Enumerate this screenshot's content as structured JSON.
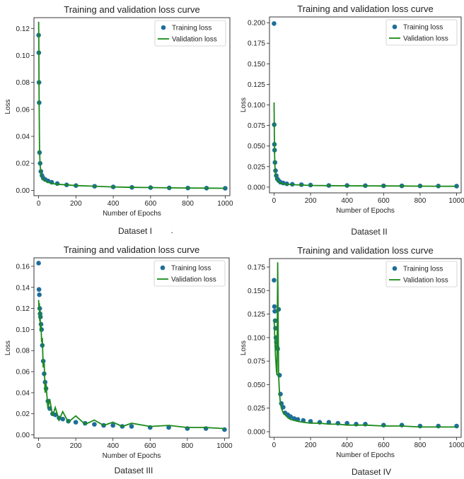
{
  "figure": {
    "captions": [
      "Dataset I",
      "Dataset II",
      "Dataset III",
      "Dataset IV"
    ],
    "stray_mark": "."
  },
  "chart_data": [
    {
      "type": "scatter",
      "title": "Training and validation loss curve",
      "xlabel": "Number of Epochs",
      "ylabel": "Loss",
      "xlim": [
        -25,
        1025
      ],
      "ylim": [
        -0.004,
        0.128
      ],
      "xticks": [
        0,
        200,
        400,
        600,
        800,
        1000
      ],
      "yticks": [
        0.0,
        0.02,
        0.04,
        0.06,
        0.08,
        0.1,
        0.12
      ],
      "ytick_labels": [
        "0.00",
        "0.02",
        "0.04",
        "0.06",
        "0.08",
        "0.10",
        "0.12"
      ],
      "legend": "top-right",
      "colors": {
        "training": "#1f6e99",
        "validation": "#1a8a1a"
      },
      "series": [
        {
          "name": "Training loss",
          "kind": "markers",
          "x": [
            0,
            1,
            2,
            3,
            5,
            8,
            12,
            18,
            25,
            35,
            50,
            70,
            100,
            150,
            200,
            300,
            400,
            500,
            600,
            700,
            800,
            900,
            1000
          ],
          "y": [
            0.115,
            0.102,
            0.08,
            0.065,
            0.028,
            0.02,
            0.014,
            0.011,
            0.009,
            0.008,
            0.007,
            0.006,
            0.005,
            0.004,
            0.0035,
            0.003,
            0.0025,
            0.0022,
            0.002,
            0.0018,
            0.0017,
            0.0016,
            0.0015
          ]
        },
        {
          "name": "Validation loss",
          "kind": "line",
          "x": [
            0,
            1,
            2,
            3,
            5,
            8,
            12,
            18,
            25,
            35,
            50,
            70,
            100,
            150,
            200,
            300,
            400,
            500,
            600,
            700,
            800,
            900,
            1000
          ],
          "y": [
            0.125,
            0.11,
            0.085,
            0.06,
            0.03,
            0.019,
            0.013,
            0.01,
            0.008,
            0.007,
            0.006,
            0.005,
            0.0045,
            0.004,
            0.0035,
            0.003,
            0.0025,
            0.0022,
            0.002,
            0.0018,
            0.0017,
            0.0016,
            0.0015
          ]
        }
      ]
    },
    {
      "type": "scatter",
      "title": "Training and validation loss curve",
      "xlabel": "Number of Epochs",
      "ylabel": "Loss",
      "xlim": [
        -25,
        1025
      ],
      "ylim": [
        -0.007,
        0.207
      ],
      "xticks": [
        0,
        200,
        400,
        600,
        800,
        1000
      ],
      "yticks": [
        0.0,
        0.025,
        0.05,
        0.075,
        0.1,
        0.125,
        0.15,
        0.175,
        0.2
      ],
      "ytick_labels": [
        "0.000",
        "0.025",
        "0.050",
        "0.075",
        "0.100",
        "0.125",
        "0.150",
        "0.175",
        "0.200"
      ],
      "legend": "top-right",
      "colors": {
        "training": "#1f6e99",
        "validation": "#1a8a1a"
      },
      "series": [
        {
          "name": "Training loss",
          "kind": "markers",
          "x": [
            0,
            1,
            2,
            3,
            5,
            8,
            12,
            18,
            25,
            35,
            50,
            70,
            100,
            150,
            200,
            300,
            400,
            500,
            600,
            700,
            800,
            900,
            1000
          ],
          "y": [
            0.199,
            0.076,
            0.052,
            0.045,
            0.03,
            0.02,
            0.014,
            0.01,
            0.008,
            0.006,
            0.005,
            0.004,
            0.0035,
            0.003,
            0.0025,
            0.002,
            0.002,
            0.0018,
            0.0016,
            0.0015,
            0.0014,
            0.0013,
            0.0012
          ]
        },
        {
          "name": "Validation loss",
          "kind": "line",
          "x": [
            0,
            1,
            2,
            3,
            5,
            8,
            12,
            18,
            25,
            35,
            50,
            70,
            100,
            150,
            200,
            300,
            400,
            500,
            600,
            700,
            800,
            900,
            1000
          ],
          "y": [
            0.103,
            0.08,
            0.055,
            0.04,
            0.025,
            0.016,
            0.011,
            0.008,
            0.006,
            0.005,
            0.004,
            0.0035,
            0.003,
            0.0025,
            0.002,
            0.0018,
            0.0016,
            0.0015,
            0.0014,
            0.0013,
            0.0012,
            0.0011,
            0.001
          ]
        }
      ]
    },
    {
      "type": "scatter",
      "title": "Training and validation loss curve",
      "xlabel": "Number of Epochs",
      "ylabel": "Loss",
      "xlim": [
        -25,
        1025
      ],
      "ylim": [
        -0.003,
        0.168
      ],
      "xticks": [
        0,
        200,
        400,
        600,
        800,
        1000
      ],
      "yticks": [
        0.0,
        0.02,
        0.04,
        0.06,
        0.08,
        0.1,
        0.12,
        0.14,
        0.16
      ],
      "ytick_labels": [
        "0.00",
        "0.02",
        "0.04",
        "0.06",
        "0.08",
        "0.10",
        "0.12",
        "0.14",
        "0.16"
      ],
      "legend": "top-right",
      "colors": {
        "training": "#1f6e99",
        "validation": "#1a8a1a"
      },
      "series": [
        {
          "name": "Training loss",
          "kind": "markers",
          "x": [
            0,
            2,
            4,
            6,
            8,
            10,
            13,
            16,
            20,
            25,
            30,
            35,
            40,
            50,
            60,
            75,
            90,
            110,
            130,
            160,
            200,
            250,
            300,
            350,
            400,
            450,
            500,
            600,
            700,
            800,
            900,
            1000
          ],
          "y": [
            0.163,
            0.138,
            0.133,
            0.12,
            0.115,
            0.112,
            0.105,
            0.1,
            0.085,
            0.07,
            0.058,
            0.05,
            0.044,
            0.032,
            0.025,
            0.02,
            0.019,
            0.016,
            0.015,
            0.013,
            0.012,
            0.011,
            0.01,
            0.009,
            0.009,
            0.008,
            0.008,
            0.007,
            0.007,
            0.006,
            0.006,
            0.005
          ]
        },
        {
          "name": "Validation loss",
          "kind": "line",
          "x": [
            0,
            2,
            4,
            6,
            8,
            10,
            13,
            16,
            20,
            25,
            30,
            35,
            40,
            50,
            60,
            75,
            90,
            110,
            130,
            160,
            200,
            250,
            300,
            350,
            400,
            450,
            500,
            600,
            700,
            800,
            900,
            1000
          ],
          "y": [
            0.128,
            0.12,
            0.125,
            0.108,
            0.118,
            0.098,
            0.105,
            0.088,
            0.092,
            0.064,
            0.068,
            0.04,
            0.048,
            0.025,
            0.034,
            0.018,
            0.026,
            0.014,
            0.022,
            0.012,
            0.018,
            0.01,
            0.014,
            0.009,
            0.012,
            0.008,
            0.011,
            0.008,
            0.009,
            0.007,
            0.007,
            0.006
          ]
        }
      ]
    },
    {
      "type": "scatter",
      "title": "Training and validation loss curve",
      "xlabel": "Number of Epochs",
      "ylabel": "Loss",
      "xlim": [
        -25,
        1025
      ],
      "ylim": [
        -0.006,
        0.184
      ],
      "xticks": [
        0,
        200,
        400,
        600,
        800,
        1000
      ],
      "yticks": [
        0.0,
        0.025,
        0.05,
        0.075,
        0.1,
        0.125,
        0.15,
        0.175
      ],
      "ytick_labels": [
        "0.000",
        "0.025",
        "0.050",
        "0.075",
        "0.100",
        "0.125",
        "0.150",
        "0.175"
      ],
      "legend": "top-right",
      "colors": {
        "training": "#1f6e99",
        "validation": "#1a8a1a"
      },
      "series": [
        {
          "name": "Training loss",
          "kind": "markers",
          "x": [
            0,
            2,
            4,
            6,
            8,
            10,
            13,
            16,
            20,
            25,
            30,
            35,
            40,
            50,
            60,
            75,
            90,
            110,
            130,
            160,
            200,
            250,
            300,
            350,
            400,
            450,
            500,
            600,
            700,
            800,
            900,
            1000
          ],
          "y": [
            0.161,
            0.133,
            0.128,
            0.118,
            0.11,
            0.1,
            0.095,
            0.09,
            0.088,
            0.13,
            0.06,
            0.04,
            0.03,
            0.026,
            0.02,
            0.018,
            0.016,
            0.014,
            0.013,
            0.012,
            0.011,
            0.01,
            0.01,
            0.009,
            0.009,
            0.008,
            0.008,
            0.007,
            0.007,
            0.006,
            0.006,
            0.006
          ]
        },
        {
          "name": "Validation loss",
          "kind": "line",
          "x": [
            0,
            2,
            4,
            6,
            8,
            10,
            13,
            16,
            20,
            25,
            30,
            35,
            40,
            50,
            60,
            75,
            90,
            110,
            130,
            160,
            200,
            250,
            300,
            350,
            400,
            450,
            500,
            600,
            700,
            800,
            900,
            1000
          ],
          "y": [
            0.12,
            0.11,
            0.1,
            0.09,
            0.08,
            0.075,
            0.065,
            0.06,
            0.18,
            0.06,
            0.04,
            0.03,
            0.025,
            0.02,
            0.018,
            0.015,
            0.013,
            0.012,
            0.011,
            0.01,
            0.009,
            0.009,
            0.008,
            0.008,
            0.007,
            0.007,
            0.007,
            0.006,
            0.006,
            0.005,
            0.005,
            0.005
          ]
        }
      ]
    }
  ]
}
